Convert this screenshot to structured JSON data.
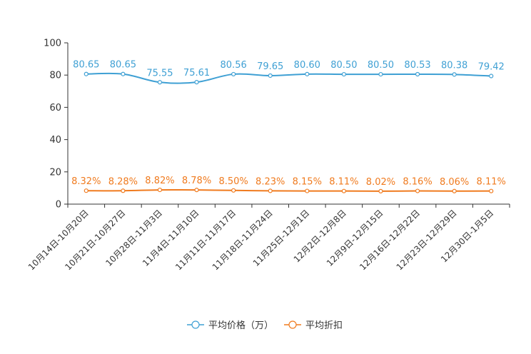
{
  "chart_data": {
    "type": "line",
    "title": "",
    "xlabel": "",
    "ylabel": "",
    "ylim": [
      0,
      100
    ],
    "yticks": [
      "0",
      "20",
      "40",
      "60",
      "80",
      "100"
    ],
    "grid": false,
    "legend_position": "bottom-center",
    "categories": [
      "10月14日-10月20日",
      "10月21日-10月27日",
      "10月28日-11月3日",
      "11月4日-11月10日",
      "11月11日-11月17日",
      "11月18日-11月24日",
      "11月25日-12月1日",
      "12月2日-12月8日",
      "12月9日-12月15日",
      "12月16日-12月22日",
      "12月23日-12月29日",
      "12月30日-1月5日"
    ],
    "series": [
      {
        "name": "平均价格（万）",
        "color": "#3fa0d4",
        "values": [
          80.65,
          80.65,
          75.55,
          75.61,
          80.56,
          79.65,
          80.6,
          80.5,
          80.5,
          80.53,
          80.38,
          79.42
        ],
        "labels": [
          "80.65",
          "80.65",
          "75.55",
          "75.61",
          "80.56",
          "79.65",
          "80.60",
          "80.50",
          "80.50",
          "80.53",
          "80.38",
          "79.42"
        ]
      },
      {
        "name": "平均折扣",
        "color": "#f07b1f",
        "values": [
          8.32,
          8.28,
          8.82,
          8.78,
          8.5,
          8.23,
          8.15,
          8.11,
          8.02,
          8.16,
          8.06,
          8.11
        ],
        "labels": [
          "8.32%",
          "8.28%",
          "8.82%",
          "8.78%",
          "8.50%",
          "8.23%",
          "8.15%",
          "8.11%",
          "8.02%",
          "8.16%",
          "8.06%",
          "8.11%"
        ]
      }
    ]
  }
}
